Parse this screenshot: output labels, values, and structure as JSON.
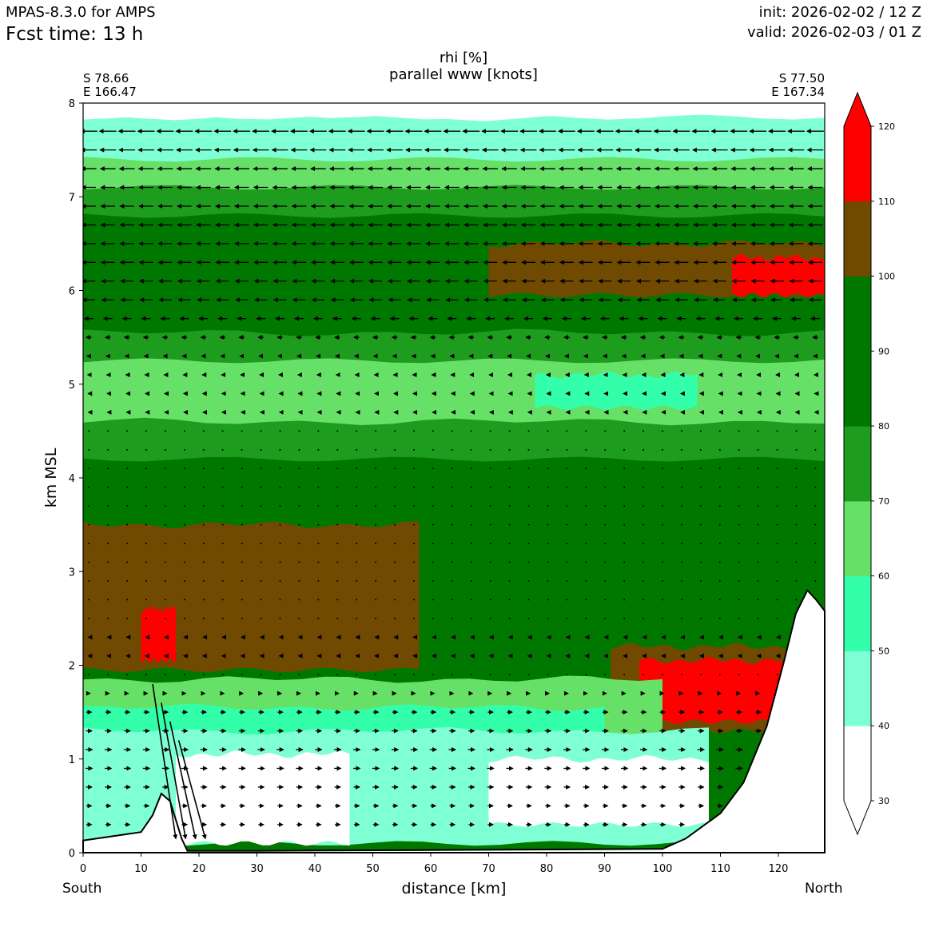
{
  "header": {
    "model": "MPAS-8.3.0 for AMPS",
    "fcst_time": "Fcst time:   13 h",
    "init": "init: 2026-02-02 / 12 Z",
    "valid": "valid: 2026-02-03 / 01 Z"
  },
  "section": {
    "start_lat": "S 78.66",
    "start_lon": "E 166.47",
    "end_lat": "S 77.50",
    "end_lon": "E 167.34",
    "left_end": "South",
    "right_end": "North"
  },
  "chart_data": {
    "type": "heatmap",
    "title": "rhi [%]",
    "subtitle": "parallel www [knots]",
    "xlabel": "distance [km]",
    "ylabel": "km MSL",
    "xlim": [
      0,
      128
    ],
    "ylim": [
      0,
      8
    ],
    "xticks": [
      "0",
      "10",
      "20",
      "30",
      "40",
      "50",
      "60",
      "70",
      "80",
      "90",
      "100",
      "110",
      "120"
    ],
    "yticks": [
      "0",
      "1",
      "2",
      "3",
      "4",
      "5",
      "6",
      "7",
      "8"
    ],
    "colorbar": {
      "label": "rhi [%]",
      "levels": [
        30,
        40,
        50,
        60,
        70,
        80,
        90,
        100,
        110,
        120
      ],
      "tick_labels": [
        "30",
        "40",
        "50",
        "60",
        "70",
        "80",
        "90",
        "100",
        "110",
        "120"
      ],
      "colors": [
        "#ffffff",
        "#7fffd4",
        "#33ffaa",
        "#66e066",
        "#1e9c1e",
        "#007800",
        "#007800",
        "#704a00",
        "#ff0000"
      ],
      "extend": "both"
    },
    "layers_rhi_percent": [
      {
        "range": "80-100",
        "ybot": 0.0,
        "ytop": 5.4,
        "color": "#007800"
      },
      {
        "range": "60-70",
        "ybot": 4.3,
        "ytop": 5.4,
        "color": "#66e066"
      },
      {
        "range": "70-80",
        "ybot": 4.2,
        "ytop": 4.6,
        "color": "#1e9c1e"
      },
      {
        "range": "50-60",
        "ybot": 4.75,
        "ytop": 5.1,
        "x": [
          78,
          106
        ],
        "color": "#33ffaa"
      },
      {
        "range": "80-90",
        "ybot": 5.3,
        "ytop": 7.05,
        "color": "#007800"
      },
      {
        "range": "70-80",
        "ybot": 5.25,
        "ytop": 5.55,
        "color": "#1e9c1e"
      },
      {
        "range": "70-80",
        "ybot": 6.8,
        "ytop": 7.15,
        "color": "#1e9c1e"
      },
      {
        "range": "100-110",
        "ybot": 5.95,
        "ytop": 6.5,
        "x": [
          70,
          128
        ],
        "color": "#704a00"
      },
      {
        "range": ">110",
        "ybot": 5.95,
        "ytop": 6.35,
        "x": [
          112,
          128
        ],
        "color": "#ff0000"
      },
      {
        "range": "60-70",
        "ybot": 7.1,
        "ytop": 7.45,
        "color": "#66e066"
      },
      {
        "range": "40-50",
        "ybot": 7.4,
        "ytop": 7.85,
        "color": "#7fffd4"
      },
      {
        "range": "<40",
        "ybot": 7.85,
        "ytop": 8.0,
        "color": "#ffffff"
      },
      {
        "range": "100-110",
        "ybot": 1.95,
        "ytop": 3.5,
        "x": [
          0,
          58
        ],
        "color": "#704a00"
      },
      {
        "range": ">110",
        "ybot": 2.05,
        "ytop": 2.6,
        "x": [
          10,
          16
        ],
        "color": "#ff0000"
      },
      {
        "range": "100-110",
        "ybot": 1.3,
        "ytop": 2.2,
        "x": [
          91,
          122
        ],
        "color": "#704a00"
      },
      {
        "range": ">110",
        "ybot": 1.4,
        "ytop": 2.05,
        "x": [
          96,
          121
        ],
        "color": "#ff0000"
      },
      {
        "range": "60-70",
        "ybot": 0.4,
        "ytop": 1.85,
        "x": [
          0,
          100
        ],
        "color": "#66e066"
      },
      {
        "range": "50-60",
        "ybot": 0.2,
        "ytop": 1.55,
        "x": [
          0,
          90
        ],
        "color": "#33ffaa"
      },
      {
        "range": "40-50",
        "ybot": 0.1,
        "ytop": 1.3,
        "x": [
          0,
          108
        ],
        "color": "#7fffd4"
      },
      {
        "range": "<40",
        "ybot": 0.1,
        "ytop": 1.05,
        "x": [
          16,
          46
        ],
        "color": "#ffffff"
      },
      {
        "range": "<40",
        "ybot": 0.3,
        "ytop": 1.0,
        "x": [
          70,
          108
        ],
        "color": "#ffffff"
      }
    ],
    "terrain_km_msl": [
      [
        0,
        0.13
      ],
      [
        10,
        0.22
      ],
      [
        12,
        0.4
      ],
      [
        13.5,
        0.63
      ],
      [
        15,
        0.55
      ],
      [
        17,
        0.15
      ],
      [
        18,
        0.02
      ],
      [
        30,
        0.02
      ],
      [
        100,
        0.04
      ],
      [
        104,
        0.15
      ],
      [
        110,
        0.42
      ],
      [
        114,
        0.75
      ],
      [
        118,
        1.35
      ],
      [
        121,
        2.05
      ],
      [
        123,
        2.55
      ],
      [
        125,
        2.8
      ],
      [
        126.5,
        2.7
      ],
      [
        128,
        2.58
      ]
    ],
    "wind_knots_parallel": [
      {
        "z": 7.9,
        "u": -10
      },
      {
        "z": 7.5,
        "u": -9
      },
      {
        "z": 7.1,
        "u": -8
      },
      {
        "z": 6.5,
        "u": -8
      },
      {
        "z": 5.9,
        "u": -7
      },
      {
        "z": 5.5,
        "u": -3
      },
      {
        "z": 5.0,
        "u": -1
      },
      {
        "z": 4.0,
        "u": 0
      },
      {
        "z": 3.0,
        "u": 0
      },
      {
        "z": 2.0,
        "u": -1
      },
      {
        "z": 1.5,
        "u": 3
      },
      {
        "z": 1.0,
        "u": 4
      },
      {
        "z": 0.5,
        "u": 3
      }
    ],
    "downslope_jet": {
      "x": [
        12,
        20
      ],
      "z": [
        0.1,
        1.8
      ],
      "speed_knots": 25
    }
  }
}
